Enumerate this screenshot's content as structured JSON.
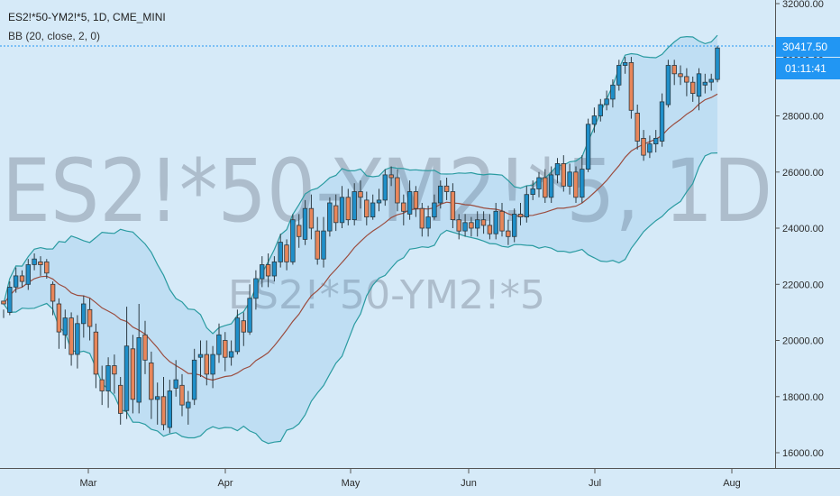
{
  "legend": {
    "symbol_line": "ES2!*50-YM2!*5, 1D, CME_MINI",
    "indicator_line": "BB (20, close, 2, 0)"
  },
  "watermark": {
    "main": "ES2!*50-YM2!*5, 1D",
    "sub": "ES2!*50-YM2!*5"
  },
  "price_label": {
    "value": "30417.50",
    "countdown": "01:11:41"
  },
  "colors": {
    "background": "#d6eaf8",
    "up_candle": "#1f8fc9",
    "down_candle": "#e8865a",
    "band": "#2a9ba1",
    "basis": "#9b4d3f",
    "price_tag": "#2196f3"
  },
  "chart_data": {
    "type": "candlestick",
    "y_ticks": [
      "32000.00",
      "30000.00",
      "28000.00",
      "26000.00",
      "24000.00",
      "22000.00",
      "20000.00",
      "18000.00",
      "16000.00"
    ],
    "y_tick_values": [
      32000,
      30000,
      28000,
      26000,
      24000,
      22000,
      20000,
      18000,
      16000
    ],
    "x_ticks": [
      "Mar",
      "Apr",
      "May",
      "Jun",
      "Jul",
      "Aug"
    ],
    "ylim": [
      15700,
      32300
    ],
    "last_price": 30417.5,
    "indicator": "Bollinger Bands (20, close, 2, 0)",
    "candles": [
      [
        21400,
        21300,
        21100,
        20800
      ],
      [
        21000,
        21900,
        22100,
        20900
      ],
      [
        21900,
        22300,
        22600,
        21700
      ],
      [
        22300,
        22100,
        22500,
        21900
      ],
      [
        22000,
        22700,
        22900,
        21800
      ],
      [
        22700,
        22900,
        23100,
        22500
      ],
      [
        22800,
        22700,
        23000,
        22300
      ],
      [
        22800,
        22400,
        22900,
        22200
      ],
      [
        22000,
        21400,
        22100,
        20900
      ],
      [
        21300,
        20300,
        21500,
        19700
      ],
      [
        20200,
        20800,
        21100,
        19700
      ],
      [
        20800,
        19500,
        21000,
        19100
      ],
      [
        19500,
        20600,
        20900,
        19000
      ],
      [
        20600,
        21300,
        21600,
        20100
      ],
      [
        21100,
        20500,
        21500,
        20000
      ],
      [
        20300,
        18800,
        20600,
        18300
      ],
      [
        18600,
        18200,
        19100,
        17700
      ],
      [
        18200,
        19100,
        19400,
        17600
      ],
      [
        19100,
        18800,
        19500,
        18100
      ],
      [
        18400,
        17400,
        18700,
        17000
      ],
      [
        17500,
        19800,
        21200,
        17200
      ],
      [
        19700,
        17900,
        20200,
        17400
      ],
      [
        17800,
        20100,
        21300,
        17400
      ],
      [
        20200,
        19300,
        20700,
        18800
      ],
      [
        19200,
        17900,
        19600,
        17200
      ],
      [
        17900,
        18000,
        18500,
        17000
      ],
      [
        18000,
        17000,
        18700,
        16800
      ],
      [
        16900,
        18200,
        18600,
        16700
      ],
      [
        18300,
        18600,
        19300,
        18000
      ],
      [
        18400,
        17700,
        18800,
        17300
      ],
      [
        17600,
        17800,
        18200,
        17000
      ],
      [
        17900,
        19300,
        19700,
        17700
      ],
      [
        19400,
        19500,
        20000,
        18700
      ],
      [
        19500,
        18800,
        20000,
        18400
      ],
      [
        18800,
        19500,
        19800,
        18300
      ],
      [
        19500,
        20200,
        20600,
        19200
      ],
      [
        20000,
        19400,
        20300,
        18900
      ],
      [
        19400,
        19600,
        20000,
        19100
      ],
      [
        19600,
        20800,
        21100,
        19500
      ],
      [
        20700,
        20300,
        21000,
        19800
      ],
      [
        20300,
        21500,
        22000,
        20200
      ],
      [
        21500,
        22200,
        22500,
        21100
      ],
      [
        22200,
        22700,
        23000,
        21900
      ],
      [
        22700,
        22300,
        23100,
        21900
      ],
      [
        22300,
        22800,
        23000,
        22100
      ],
      [
        22800,
        23500,
        23800,
        22600
      ],
      [
        23400,
        22800,
        23600,
        22500
      ],
      [
        22800,
        24300,
        24500,
        22700
      ],
      [
        24100,
        23700,
        24500,
        23300
      ],
      [
        23600,
        24700,
        25000,
        23400
      ],
      [
        24700,
        24000,
        25200,
        23600
      ],
      [
        23900,
        22900,
        24400,
        22700
      ],
      [
        22900,
        23900,
        24400,
        22600
      ],
      [
        23900,
        24900,
        25100,
        23700
      ],
      [
        24800,
        24200,
        25200,
        23900
      ],
      [
        24200,
        25100,
        25500,
        24000
      ],
      [
        25100,
        24300,
        25400,
        24100
      ],
      [
        24300,
        25300,
        25600,
        24100
      ],
      [
        25300,
        25100,
        25700,
        24700
      ],
      [
        25000,
        24400,
        25300,
        24100
      ],
      [
        24400,
        24900,
        25200,
        24300
      ],
      [
        24900,
        25000,
        25400,
        24600
      ],
      [
        25000,
        25900,
        26100,
        24800
      ],
      [
        25900,
        25800,
        26200,
        25500
      ],
      [
        25800,
        24900,
        26100,
        24600
      ],
      [
        24900,
        24600,
        25200,
        24100
      ],
      [
        24500,
        25300,
        25700,
        24300
      ],
      [
        25300,
        24700,
        25500,
        24400
      ],
      [
        24700,
        24000,
        24900,
        23700
      ],
      [
        24000,
        24400,
        24800,
        23700
      ],
      [
        24400,
        24900,
        25200,
        24300
      ],
      [
        24900,
        25500,
        25700,
        24700
      ],
      [
        25500,
        25300,
        25800,
        25000
      ],
      [
        25300,
        24300,
        25600,
        24000
      ],
      [
        24300,
        23900,
        24500,
        23600
      ],
      [
        23900,
        24200,
        24500,
        23700
      ],
      [
        24200,
        24000,
        24400,
        23700
      ],
      [
        24000,
        24300,
        24600,
        23700
      ],
      [
        24300,
        24100,
        24600,
        23800
      ],
      [
        24100,
        23800,
        24500,
        23600
      ],
      [
        23800,
        24600,
        24900,
        23600
      ],
      [
        24600,
        23900,
        24900,
        23700
      ],
      [
        23900,
        23700,
        24300,
        23400
      ],
      [
        23700,
        24500,
        24700,
        23500
      ],
      [
        24500,
        24400,
        24900,
        24100
      ],
      [
        24400,
        25200,
        25500,
        24200
      ],
      [
        25200,
        25400,
        25700,
        25000
      ],
      [
        25400,
        25800,
        26000,
        25100
      ],
      [
        25800,
        25100,
        26100,
        24900
      ],
      [
        25100,
        25900,
        26200,
        24900
      ],
      [
        25900,
        26300,
        26500,
        25600
      ],
      [
        26300,
        25500,
        26600,
        25300
      ],
      [
        25500,
        26000,
        26300,
        25200
      ],
      [
        26000,
        25100,
        26200,
        24900
      ],
      [
        25100,
        26100,
        26600,
        24900
      ],
      [
        26100,
        27700,
        27900,
        26000
      ],
      [
        27700,
        28000,
        28300,
        27400
      ],
      [
        28000,
        28400,
        28600,
        27800
      ],
      [
        28400,
        28600,
        28900,
        28200
      ],
      [
        28600,
        29100,
        29300,
        28300
      ],
      [
        29100,
        29800,
        30000,
        28900
      ],
      [
        29800,
        29900,
        30100,
        29500
      ],
      [
        29900,
        28200,
        30100,
        27900
      ],
      [
        28100,
        27100,
        28400,
        26800
      ],
      [
        27200,
        26600,
        27500,
        26400
      ],
      [
        26700,
        27000,
        27300,
        26500
      ],
      [
        27000,
        27200,
        27500,
        26700
      ],
      [
        27100,
        28500,
        28800,
        26900
      ],
      [
        28400,
        29800,
        30000,
        28300
      ],
      [
        29800,
        29500,
        30000,
        29100
      ],
      [
        29500,
        29400,
        29800,
        29100
      ],
      [
        29400,
        29200,
        29700,
        28700
      ],
      [
        29200,
        28800,
        29400,
        28500
      ],
      [
        28700,
        29500,
        29700,
        28200
      ],
      [
        29100,
        29200,
        29500,
        28800
      ],
      [
        29200,
        29300,
        29500,
        28900
      ],
      [
        29300,
        30420,
        30500,
        29200
      ]
    ]
  }
}
